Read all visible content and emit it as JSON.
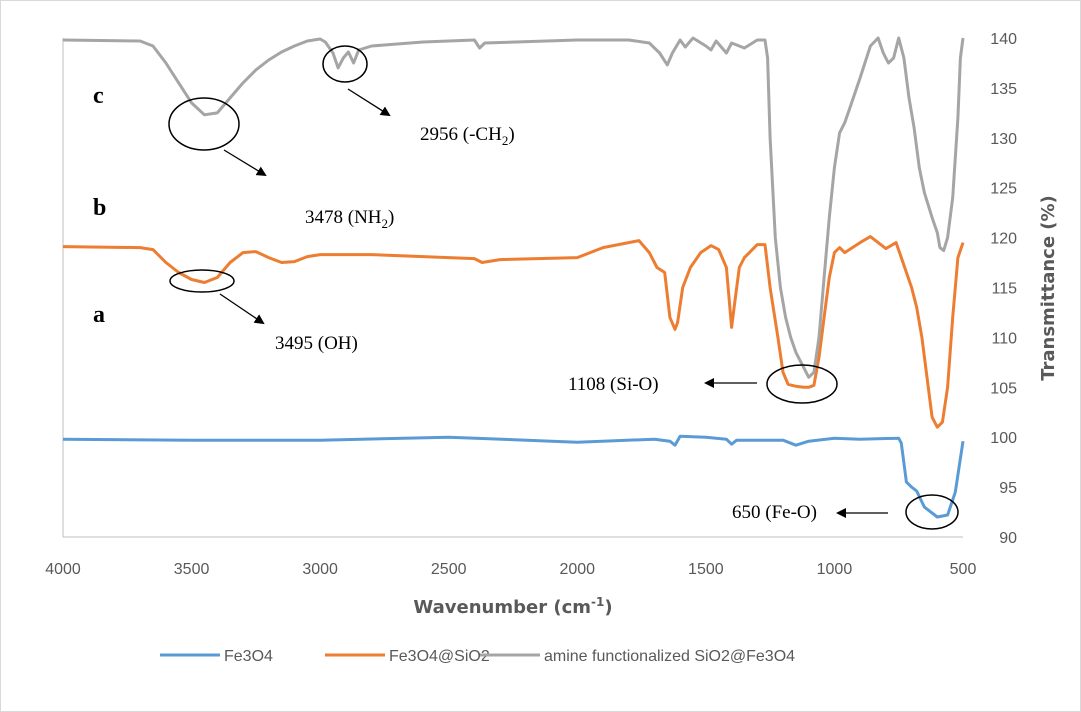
{
  "chart_data": {
    "type": "line",
    "xlabel": "Wavenumber (cm",
    "xlabel_sup": "-1",
    "xlabel_end": ")",
    "ylabel": "Transmittance (%)",
    "xlim": [
      4000,
      500
    ],
    "ylim": [
      90,
      140
    ],
    "x_ticks": [
      "4000",
      "3500",
      "3000",
      "2500",
      "2000",
      "1500",
      "1000",
      "500"
    ],
    "y_ticks": [
      "90",
      "95",
      "100",
      "105",
      "110",
      "115",
      "120",
      "125",
      "130",
      "135",
      "140"
    ],
    "grid": false,
    "legend_position": "bottom",
    "series": [
      {
        "name": "Fe3O4",
        "color": "#5b9bd5",
        "points": [
          [
            4000,
            99.8
          ],
          [
            3500,
            99.7
          ],
          [
            3000,
            99.7
          ],
          [
            2500,
            100
          ],
          [
            2000,
            99.5
          ],
          [
            1700,
            99.8
          ],
          [
            1640,
            99.6
          ],
          [
            1620,
            99.2
          ],
          [
            1600,
            100.1
          ],
          [
            1500,
            100
          ],
          [
            1420,
            99.8
          ],
          [
            1400,
            99.3
          ],
          [
            1380,
            99.7
          ],
          [
            1200,
            99.7
          ],
          [
            1150,
            99.2
          ],
          [
            1100,
            99.6
          ],
          [
            1000,
            99.9
          ],
          [
            900,
            99.8
          ],
          [
            750,
            99.9
          ],
          [
            740,
            99.4
          ],
          [
            720,
            95.5
          ],
          [
            700,
            95
          ],
          [
            680,
            94.6
          ],
          [
            650,
            93
          ],
          [
            600,
            92
          ],
          [
            560,
            92.2
          ],
          [
            530,
            94.5
          ],
          [
            500,
            99.6
          ]
        ]
      },
      {
        "name": "Fe3O4@SiO2",
        "color": "#ed7d31",
        "points": [
          [
            4000,
            119.1
          ],
          [
            3700,
            119
          ],
          [
            3650,
            118.8
          ],
          [
            3600,
            117.5
          ],
          [
            3550,
            116.5
          ],
          [
            3500,
            115.8
          ],
          [
            3450,
            115.5
          ],
          [
            3400,
            116
          ],
          [
            3350,
            117.5
          ],
          [
            3300,
            118.5
          ],
          [
            3250,
            118.6
          ],
          [
            3200,
            118
          ],
          [
            3150,
            117.5
          ],
          [
            3100,
            117.6
          ],
          [
            3050,
            118.1
          ],
          [
            3000,
            118.3
          ],
          [
            2800,
            118.3
          ],
          [
            2600,
            118.1
          ],
          [
            2400,
            117.9
          ],
          [
            2370,
            117.5
          ],
          [
            2300,
            117.8
          ],
          [
            2000,
            118
          ],
          [
            1900,
            119
          ],
          [
            1760,
            119.7
          ],
          [
            1720,
            118.5
          ],
          [
            1690,
            117
          ],
          [
            1660,
            116.5
          ],
          [
            1640,
            112
          ],
          [
            1620,
            110.8
          ],
          [
            1610,
            111.5
          ],
          [
            1590,
            115
          ],
          [
            1560,
            117
          ],
          [
            1520,
            118.5
          ],
          [
            1480,
            119.2
          ],
          [
            1450,
            118.8
          ],
          [
            1420,
            117
          ],
          [
            1400,
            111
          ],
          [
            1390,
            113
          ],
          [
            1370,
            117
          ],
          [
            1350,
            118
          ],
          [
            1300,
            119.3
          ],
          [
            1270,
            119.3
          ],
          [
            1250,
            115
          ],
          [
            1220,
            110
          ],
          [
            1200,
            106.5
          ],
          [
            1180,
            105.3
          ],
          [
            1150,
            105.1
          ],
          [
            1120,
            105
          ],
          [
            1100,
            105
          ],
          [
            1080,
            105.2
          ],
          [
            1060,
            108
          ],
          [
            1040,
            112
          ],
          [
            1020,
            116
          ],
          [
            1000,
            118.5
          ],
          [
            980,
            119
          ],
          [
            960,
            118.5
          ],
          [
            900,
            119.5
          ],
          [
            860,
            120.1
          ],
          [
            820,
            119.3
          ],
          [
            800,
            118.9
          ],
          [
            760,
            119.5
          ],
          [
            740,
            118
          ],
          [
            700,
            115
          ],
          [
            680,
            113
          ],
          [
            660,
            110
          ],
          [
            640,
            106
          ],
          [
            620,
            102
          ],
          [
            600,
            101
          ],
          [
            580,
            101.5
          ],
          [
            560,
            105
          ],
          [
            540,
            112
          ],
          [
            520,
            118
          ],
          [
            500,
            119.5
          ]
        ]
      },
      {
        "name": "amine functionalized SiO2@Fe3O4",
        "color": "#a5a5a5",
        "points": [
          [
            4000,
            139.8
          ],
          [
            3700,
            139.7
          ],
          [
            3650,
            139.2
          ],
          [
            3600,
            137.5
          ],
          [
            3550,
            135.5
          ],
          [
            3500,
            133.5
          ],
          [
            3450,
            132.3
          ],
          [
            3400,
            132.5
          ],
          [
            3350,
            134
          ],
          [
            3300,
            135.5
          ],
          [
            3250,
            136.8
          ],
          [
            3200,
            137.8
          ],
          [
            3150,
            138.6
          ],
          [
            3100,
            139.2
          ],
          [
            3050,
            139.7
          ],
          [
            3000,
            139.9
          ],
          [
            2980,
            139.6
          ],
          [
            2950,
            138.5
          ],
          [
            2930,
            137
          ],
          [
            2910,
            138
          ],
          [
            2890,
            138.6
          ],
          [
            2870,
            137.5
          ],
          [
            2850,
            138.8
          ],
          [
            2800,
            139.2
          ],
          [
            2600,
            139.6
          ],
          [
            2400,
            139.8
          ],
          [
            2380,
            139
          ],
          [
            2360,
            139.5
          ],
          [
            2000,
            139.8
          ],
          [
            1800,
            139.8
          ],
          [
            1720,
            139.5
          ],
          [
            1680,
            138.5
          ],
          [
            1650,
            137.3
          ],
          [
            1630,
            138.5
          ],
          [
            1600,
            139.8
          ],
          [
            1580,
            139.1
          ],
          [
            1550,
            140
          ],
          [
            1500,
            139.2
          ],
          [
            1480,
            138.8
          ],
          [
            1460,
            139.7
          ],
          [
            1420,
            138.5
          ],
          [
            1400,
            139.5
          ],
          [
            1350,
            139
          ],
          [
            1300,
            139.8
          ],
          [
            1270,
            139.8
          ],
          [
            1260,
            138
          ],
          [
            1250,
            130
          ],
          [
            1230,
            120
          ],
          [
            1210,
            115
          ],
          [
            1190,
            112
          ],
          [
            1170,
            110
          ],
          [
            1150,
            108.5
          ],
          [
            1120,
            107
          ],
          [
            1100,
            106
          ],
          [
            1080,
            106.5
          ],
          [
            1060,
            110
          ],
          [
            1040,
            116
          ],
          [
            1020,
            122
          ],
          [
            1000,
            127
          ],
          [
            980,
            130.5
          ],
          [
            960,
            131.5
          ],
          [
            940,
            133
          ],
          [
            900,
            136
          ],
          [
            860,
            139.2
          ],
          [
            830,
            140
          ],
          [
            810,
            138.5
          ],
          [
            790,
            137.5
          ],
          [
            770,
            138
          ],
          [
            750,
            140
          ],
          [
            730,
            138
          ],
          [
            710,
            134
          ],
          [
            690,
            131
          ],
          [
            670,
            127
          ],
          [
            650,
            124.5
          ],
          [
            620,
            122
          ],
          [
            600,
            120.5
          ],
          [
            590,
            119
          ],
          [
            575,
            118.7
          ],
          [
            560,
            120
          ],
          [
            540,
            124
          ],
          [
            520,
            132
          ],
          [
            510,
            138
          ],
          [
            500,
            140
          ]
        ]
      }
    ],
    "annotations": {
      "a": "a",
      "b": "b",
      "c": "c",
      "nh2_pre": "3478 (NH",
      "nh2_sub": "2",
      "nh2_post": ")",
      "ch2_pre": "2956 (-CH",
      "ch2_sub": "2",
      "ch2_post": ")",
      "oh": "3495 (OH)",
      "sio": "1108 (Si-O)",
      "feo": "650 (Fe-O)"
    }
  }
}
